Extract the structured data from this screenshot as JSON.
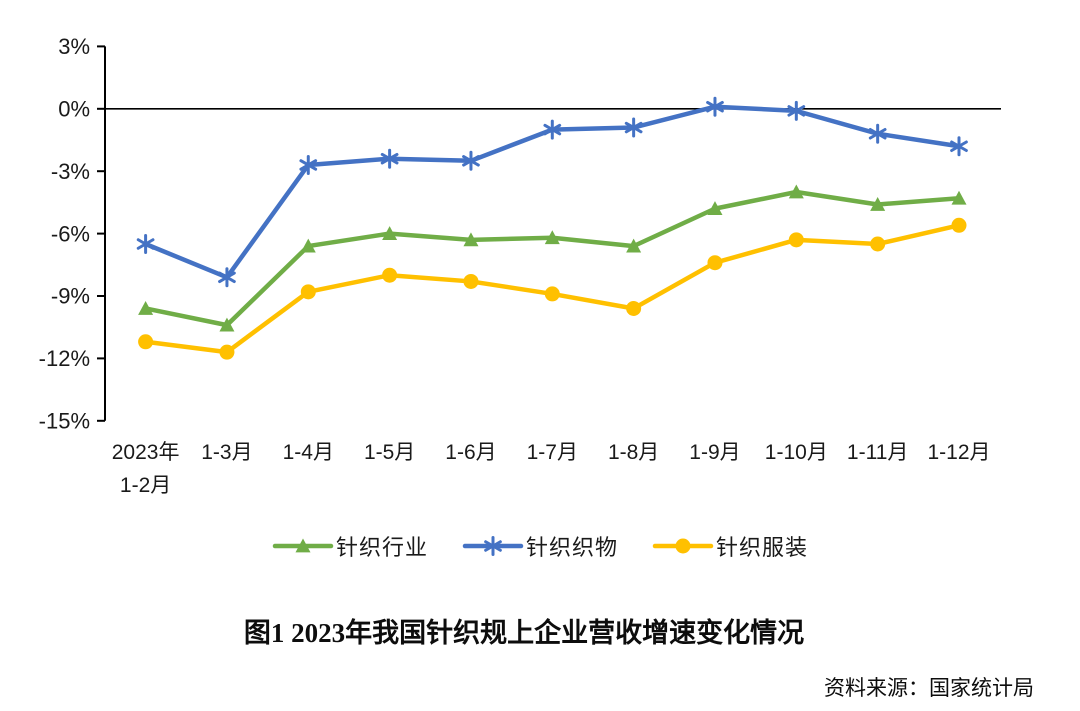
{
  "figure": {
    "title": "图1  2023年我国针织规上企业营收增速变化情况",
    "source": "资料来源：国家统计局"
  },
  "chart_data": {
    "type": "line",
    "title": "图1  2023年我国针织规上企业营收增速变化情况",
    "categories": [
      "2023年\n1-2月",
      "1-3月",
      "1-4月",
      "1-5月",
      "1-6月",
      "1-7月",
      "1-8月",
      "1-9月",
      "1-10月",
      "1-11月",
      "1-12月"
    ],
    "series": [
      {
        "name": "针织行业",
        "color": "#70AD47",
        "marker": "triangle",
        "values": [
          -9.6,
          -10.4,
          -6.6,
          -6.0,
          -6.3,
          -6.2,
          -6.6,
          -4.8,
          -4.0,
          -4.6,
          -4.3
        ]
      },
      {
        "name": "针织织物",
        "color": "#4472C4",
        "marker": "asterisk",
        "values": [
          -6.5,
          -8.1,
          -2.7,
          -2.4,
          -2.5,
          -1.0,
          -0.9,
          0.1,
          -0.1,
          -1.2,
          -1.8
        ]
      },
      {
        "name": "针织服装",
        "color": "#FFC000",
        "marker": "circle",
        "values": [
          -11.2,
          -11.7,
          -8.8,
          -8.0,
          -8.3,
          -8.9,
          -9.6,
          -7.4,
          -6.3,
          -6.5,
          -5.6
        ]
      }
    ],
    "unit": "%",
    "xlabel": "",
    "ylabel": "",
    "ylim": [
      -15,
      3
    ],
    "y_tick_step": 3,
    "y_tick_labels": [
      "3%",
      "0%",
      "-3%",
      "-6%",
      "-9%",
      "-12%",
      "-15%"
    ],
    "grid": false,
    "zero_line": true,
    "legend_position": "bottom",
    "axis_color": "#000000",
    "tick_label_color": "#1a1a1a"
  }
}
